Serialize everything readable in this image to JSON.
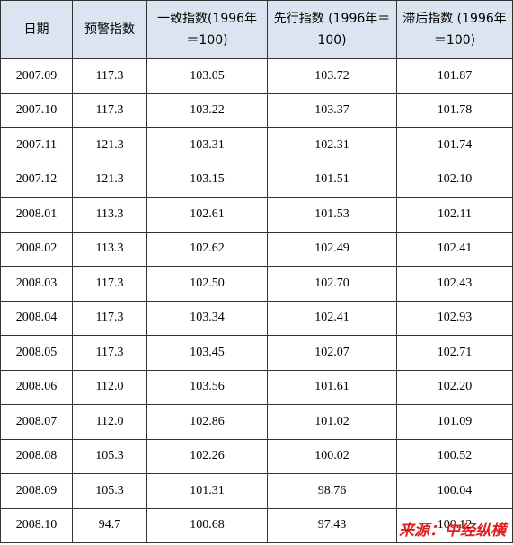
{
  "table": {
    "header": [
      "日期",
      "预警指数",
      "一致指数(1996年＝100)",
      "先行指数 (1996年＝100)",
      "滞后指数 (1996年＝100)"
    ],
    "rows": [
      [
        "2007.09",
        "117.3",
        "103.05",
        "103.72",
        "101.87"
      ],
      [
        "2007.10",
        "117.3",
        "103.22",
        "103.37",
        "101.78"
      ],
      [
        "2007.11",
        "121.3",
        "103.31",
        "102.31",
        "101.74"
      ],
      [
        "2007.12",
        "121.3",
        "103.15",
        "101.51",
        "102.10"
      ],
      [
        "2008.01",
        "113.3",
        "102.61",
        "101.53",
        "102.11"
      ],
      [
        "2008.02",
        "113.3",
        "102.62",
        "102.49",
        "102.41"
      ],
      [
        "2008.03",
        "117.3",
        "102.50",
        "102.70",
        "102.43"
      ],
      [
        "2008.04",
        "117.3",
        "103.34",
        "102.41",
        "102.93"
      ],
      [
        "2008.05",
        "117.3",
        "103.45",
        "102.07",
        "102.71"
      ],
      [
        "2008.06",
        "112.0",
        "103.56",
        "101.61",
        "102.20"
      ],
      [
        "2008.07",
        "112.0",
        "102.86",
        "101.02",
        "101.09"
      ],
      [
        "2008.08",
        "105.3",
        "102.26",
        "100.02",
        "100.52"
      ],
      [
        "2008.09",
        "105.3",
        "101.31",
        "98.76",
        "100.04"
      ],
      [
        "2008.10",
        "94.7",
        "100.68",
        "97.43",
        "100.12"
      ]
    ]
  },
  "source": "来源：中经纵横"
}
